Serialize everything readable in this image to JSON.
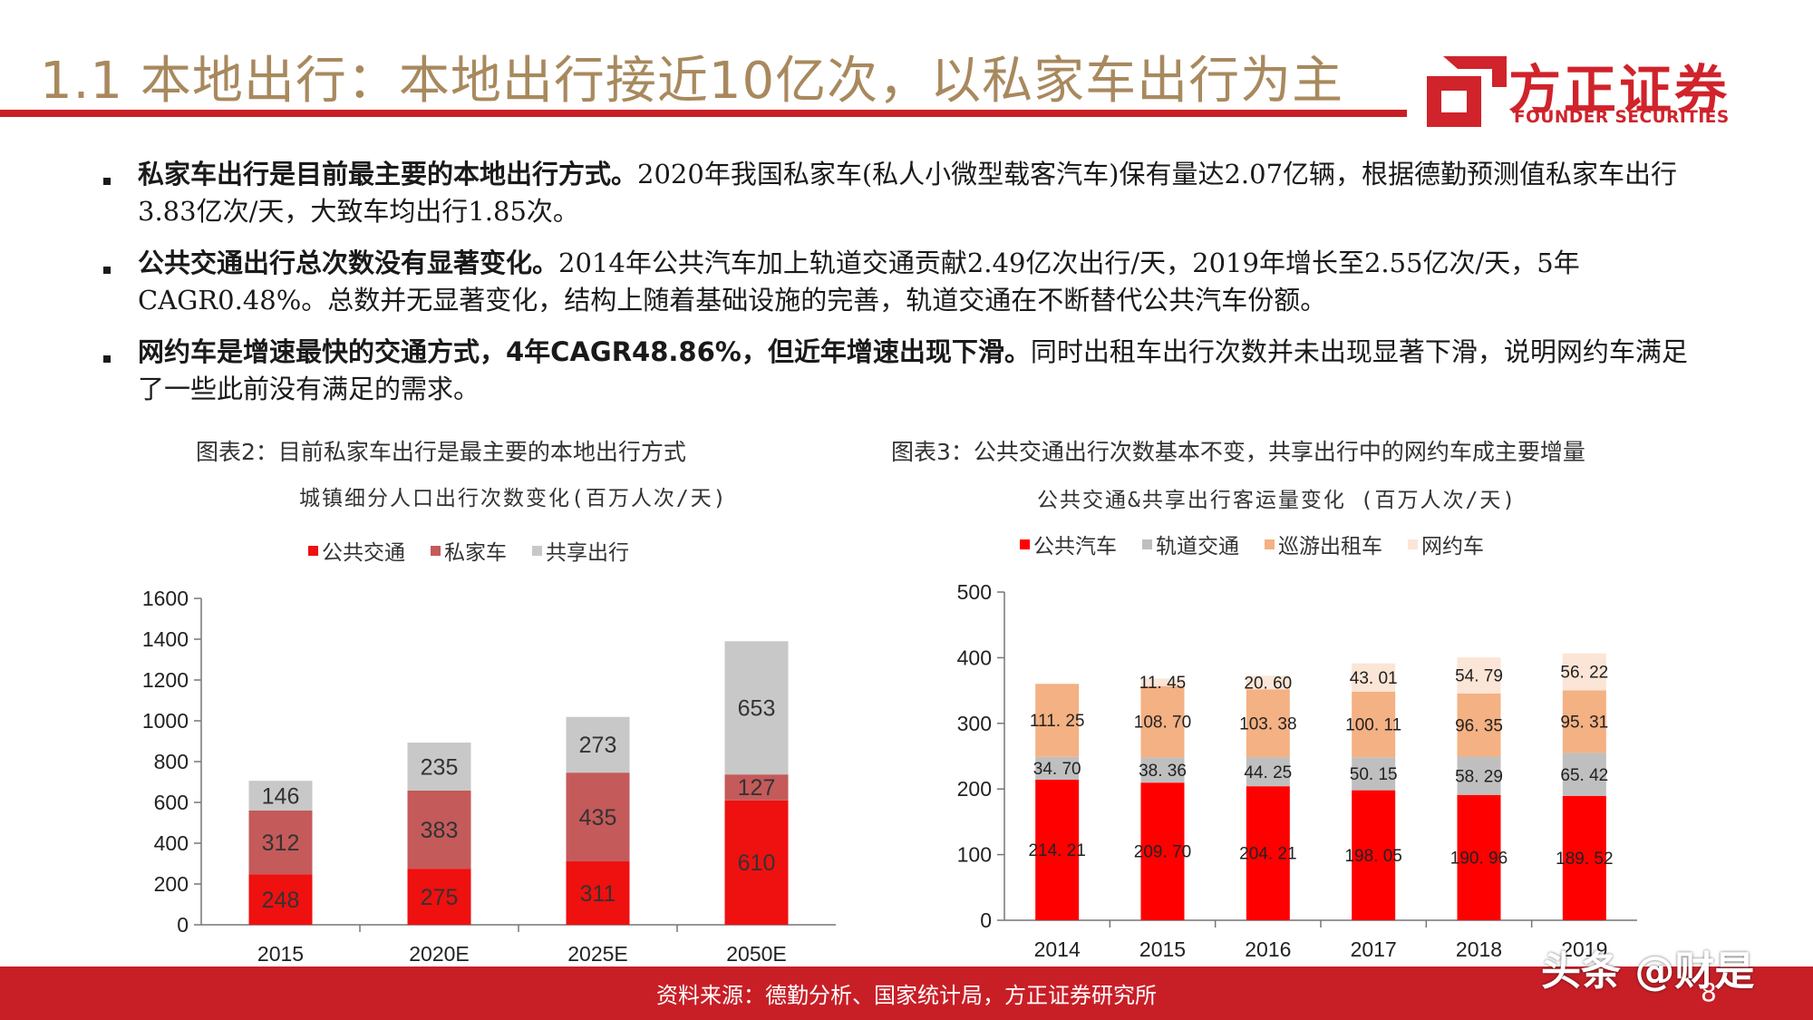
{
  "header": {
    "title": "1.1 本地出行：本地出行接近10亿次，以私家车出行为主",
    "logo_cn": "方正证券",
    "logo_en": "FOUNDER SECURITIES",
    "accent_color": "#c81f27"
  },
  "bullets": [
    {
      "bold": "私家车出行是目前最主要的本地出行方式。",
      "text": "2020年我国私家车(私人小微型载客汽车)保有量达2.07亿辆，根据德勤预测值私家车出行3.83亿次/天，大致车均出行1.85次。"
    },
    {
      "bold": "公共交通出行总次数没有显著变化。",
      "text": "2014年公共汽车加上轨道交通贡献2.49亿次出行/天，2019年增长至2.55亿次/天，5年CAGR0.48%。总数并无显著变化，结构上随着基础设施的完善，轨道交通在不断替代公共汽车份额。"
    },
    {
      "bold": "网约车是增速最快的交通方式，4年CAGR48.86%，但近年增速出现下滑。",
      "text": "同时出租车出行次数并未出现显著下滑，说明网约车满足了一些此前没有满足的需求。"
    }
  ],
  "chart_data": [
    {
      "type": "bar",
      "stacked": true,
      "caption": "图表2：目前私家车出行是最主要的本地出行方式",
      "title": "城镇细分人口出行次数变化(百万人次/天)",
      "categories": [
        "2015",
        "2020E",
        "2025E",
        "2050E"
      ],
      "series": [
        {
          "name": "公共交通",
          "color": "#ef1010",
          "values": [
            248,
            275,
            311,
            610
          ]
        },
        {
          "name": "私家车",
          "color": "#c55a5a",
          "values": [
            312,
            383,
            435,
            127
          ]
        },
        {
          "name": "共享出行",
          "color": "#c8c8c8",
          "values": [
            146,
            235,
            273,
            653
          ]
        }
      ],
      "ylim": [
        0,
        1600
      ],
      "yticks": [
        0,
        200,
        400,
        600,
        800,
        1000,
        1200,
        1400,
        1600
      ],
      "legend": "top",
      "grid": false
    },
    {
      "type": "bar",
      "stacked": true,
      "caption": "图表3：公共交通出行次数基本不变，共享出行中的网约车成主要增量",
      "title": "公共交通&共享出行客运量变化 (百万人次/天)",
      "categories": [
        "2014",
        "2015",
        "2016",
        "2017",
        "2018",
        "2019"
      ],
      "series": [
        {
          "name": "公共汽车",
          "color": "#ff0000",
          "values": [
            214.21,
            209.7,
            204.21,
            198.05,
            190.96,
            189.52
          ]
        },
        {
          "name": "轨道交通",
          "color": "#bfbfbf",
          "values": [
            34.7,
            38.36,
            44.25,
            50.15,
            58.29,
            65.42
          ]
        },
        {
          "name": "巡游出租车",
          "color": "#f4b183",
          "values": [
            111.25,
            108.7,
            103.38,
            100.11,
            96.35,
            95.31
          ]
        },
        {
          "name": "网约车",
          "color": "#fbe5d6",
          "values": [
            null,
            11.45,
            20.6,
            43.01,
            54.79,
            56.22
          ]
        }
      ],
      "labels": [
        [
          "214. 21",
          "209. 70",
          "204. 21",
          "198. 05",
          "190. 96",
          "189. 52"
        ],
        [
          "34. 70",
          "38. 36",
          "44. 25",
          "50. 15",
          "58. 29",
          "65. 42"
        ],
        [
          "111. 25",
          "108. 70",
          "103. 38",
          "100. 11",
          "96. 35",
          "95. 31"
        ],
        [
          "",
          "11. 45",
          "20. 60",
          "43. 01",
          "54. 79",
          "56. 22"
        ]
      ],
      "ylim": [
        0,
        500
      ],
      "yticks": [
        0,
        100,
        200,
        300,
        400,
        500
      ],
      "legend": "top",
      "grid": false
    }
  ],
  "footer": {
    "source": "资料来源：德勤分析、国家统计局，方正证券研究所",
    "page": "8",
    "watermark": "头条 @财是"
  }
}
